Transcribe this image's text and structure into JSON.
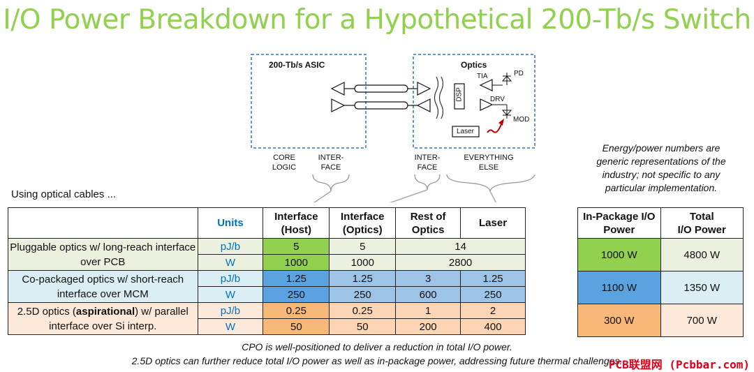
{
  "title": "I/O Power Breakdown for a Hypothetical 200-Tb/s Switch",
  "diagram": {
    "asic_label": "200-Tb/s ASIC",
    "optics_label": "Optics",
    "core_logic": "CORE\nLOGIC",
    "interface_left": "INTER-\nFACE",
    "interface_right": "INTER-\nFACE",
    "everything_else": "EVERYTHING\nELSE",
    "dsp": "DSP",
    "tia": "TIA",
    "pd": "PD",
    "drv": "DRV",
    "mod": "MOD",
    "laser": "Laser"
  },
  "note": "Energy/power numbers are generic representations of the industry; not specific to any particular implementation.",
  "using": "Using optical cables ...",
  "table": {
    "headers": [
      "",
      "Units",
      "Interface\n(Host)",
      "Interface\n(Optics)",
      "Rest of\nOptics",
      "Laser"
    ],
    "rows": [
      {
        "label_pre": "Pluggable optics w/ long-reach interface over PCB",
        "label_bold": "",
        "label_post": "",
        "r1": {
          "unit": "pJ/b",
          "host": "5",
          "optics": "5",
          "rest_laser": "14"
        },
        "r2": {
          "unit": "W",
          "host": "1000",
          "optics": "1000",
          "rest_laser": "2800"
        }
      },
      {
        "label_pre": "Co-packaged optics w/ short-reach interface over MCM",
        "label_bold": "",
        "label_post": "",
        "r1": {
          "unit": "pJ/b",
          "host": "1.25",
          "optics": "1.25",
          "rest": "3",
          "laser": "1.25"
        },
        "r2": {
          "unit": "W",
          "host": "250",
          "optics": "250",
          "rest": "600",
          "laser": "250"
        }
      },
      {
        "label_pre": "2.5D optics (",
        "label_bold": "aspirational",
        "label_post": ") w/ parallel interface over Si interp.",
        "r1": {
          "unit": "pJ/b",
          "host": "0.25",
          "optics": "0.25",
          "rest": "1",
          "laser": "2"
        },
        "r2": {
          "unit": "W",
          "host": "50",
          "optics": "50",
          "rest": "200",
          "laser": "400"
        }
      }
    ]
  },
  "side_table": {
    "headers": [
      "In-Package I/O\nPower",
      "Total\nI/O  Power"
    ],
    "rows": [
      [
        "1000 W",
        "4800 W"
      ],
      [
        "1100 W",
        "1350 W"
      ],
      [
        "300 W",
        "700 W"
      ]
    ],
    "colors": {
      "green_hi": "#92d050",
      "green": "#ebf1de",
      "blue_hi": "#5ba3e0",
      "blue": "#dbeef3",
      "orange_hi": "#f8b878",
      "orange": "#fde9d9"
    }
  },
  "footer": [
    "CPO is well-positioned to deliver a reduction in total I/O power.",
    "2.5D optics can further reduce total I/O power as well as in-package power, addressing future thermal challenges."
  ],
  "watermark": "PCB联盟网 (Pcbbar.com)"
}
